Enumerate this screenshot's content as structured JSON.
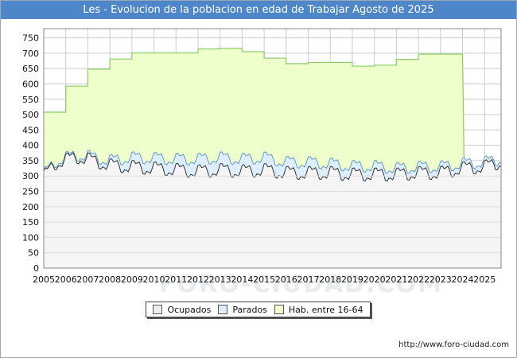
{
  "chart_data": {
    "type": "area",
    "title": "Les - Evolucion de la poblacion en edad de Trabajar Agosto de 2025",
    "ylim": [
      0,
      780
    ],
    "yticks": [
      0,
      50,
      100,
      150,
      200,
      250,
      300,
      350,
      400,
      450,
      500,
      550,
      600,
      650,
      700,
      750
    ],
    "xlim": [
      2005,
      2025.75
    ],
    "xticks": [
      "2005",
      "2006",
      "2007",
      "2008",
      "2009",
      "2010",
      "2011",
      "2012",
      "2013",
      "2014",
      "2015",
      "2016",
      "2017",
      "2018",
      "2019",
      "2020",
      "2021",
      "2022",
      "2023",
      "2024",
      "2025"
    ],
    "hab_16_64": {
      "name": "Hab. entre 16-64",
      "years": [
        2005,
        2006,
        2007,
        2008,
        2009,
        2010,
        2011,
        2012,
        2013,
        2014,
        2015,
        2016,
        2017,
        2018,
        2019,
        2020,
        2021,
        2022,
        2023
      ],
      "values": [
        508,
        593,
        648,
        681,
        701,
        701,
        701,
        714,
        716,
        705,
        684,
        666,
        670,
        670,
        658,
        661,
        680,
        697,
        697
      ],
      "end": 2024.0
    },
    "parados_base": {
      "name": "Parados",
      "anchors_x": [
        2005,
        2005.5,
        2006,
        2006.5,
        2007,
        2008,
        2009,
        2010,
        2011,
        2012,
        2013,
        2014,
        2015,
        2016,
        2017,
        2018,
        2019,
        2020,
        2021,
        2022,
        2023,
        2024,
        2025,
        2025.75
      ],
      "anchors_y": [
        305,
        345,
        360,
        368,
        365,
        350,
        360,
        358,
        355,
        355,
        360,
        355,
        360,
        345,
        345,
        340,
        332,
        332,
        325,
        330,
        330,
        340,
        345,
        355
      ]
    },
    "ocupados_base": {
      "name": "Ocupados",
      "anchors_x": [
        2005,
        2005.5,
        2006,
        2006.5,
        2007,
        2008,
        2009,
        2010,
        2011,
        2012,
        2013,
        2014,
        2015,
        2016,
        2017,
        2018,
        2019,
        2020,
        2021,
        2022,
        2023,
        2024,
        2025,
        2025.75
      ],
      "anchors_y": [
        298,
        340,
        352,
        362,
        355,
        335,
        330,
        325,
        320,
        315,
        320,
        315,
        320,
        310,
        310,
        310,
        305,
        305,
        305,
        310,
        310,
        325,
        330,
        345
      ]
    },
    "legend": [
      {
        "label": "Ocupados",
        "color": "#eeeeee"
      },
      {
        "label": "Parados",
        "color": "#ddeeff"
      },
      {
        "label": "Hab. entre 16-64",
        "color": "#eeffcc"
      }
    ],
    "colors": {
      "hab_fill": "#eeffcc",
      "hab_line": "#88cc66",
      "parados_fill": "#ddeeff",
      "parados_line": "#6699cc",
      "ocupados_fill": "#f5f5f5",
      "ocupados_line": "#333333",
      "grid": "#cccccc",
      "title_bg": "#4d86c9"
    }
  },
  "footer": {
    "url": "http://www.foro-ciudad.com",
    "watermark": "FORO-CIUDAD.COM"
  }
}
